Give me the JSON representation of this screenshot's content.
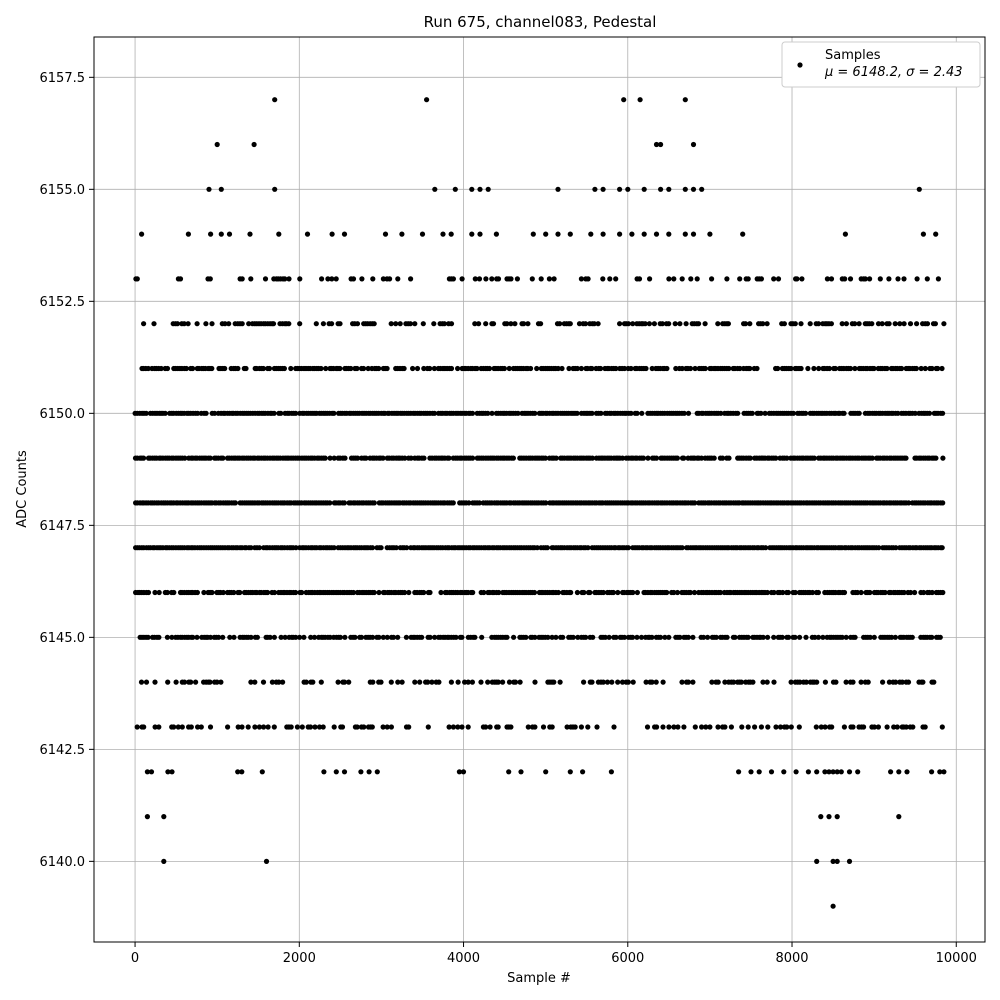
{
  "chart_data": {
    "type": "scatter",
    "title": "Run 675, channel083, Pedestal",
    "xlabel": "Sample #",
    "ylabel": "ADC Counts",
    "xlim": [
      -500,
      10350
    ],
    "ylim": [
      6138.2,
      6158.4
    ],
    "xticks": [
      0,
      2000,
      4000,
      6000,
      8000,
      10000
    ],
    "xtick_labels": [
      "0",
      "2000",
      "4000",
      "6000",
      "8000",
      "10000"
    ],
    "yticks": [
      6140.0,
      6142.5,
      6145.0,
      6147.5,
      6150.0,
      6152.5,
      6155.0,
      6157.5
    ],
    "ytick_labels": [
      "6140.0",
      "6142.5",
      "6145.0",
      "6147.5",
      "6150.0",
      "6152.5",
      "6155.0",
      "6157.5"
    ],
    "grid": true,
    "legend_position": "top-right",
    "marker_color": "#000000",
    "series": [
      {
        "name": "Samples",
        "stats_label": "μ = 6148.2, σ = 2.43",
        "bands": [
          {
            "y": 6150,
            "x_start": 0,
            "x_end": 9850,
            "density": 0.9
          },
          {
            "y": 6149,
            "x_start": 0,
            "x_end": 9850,
            "density": 0.85
          },
          {
            "y": 6148,
            "x_start": 0,
            "x_end": 9850,
            "density": 0.95
          },
          {
            "y": 6147,
            "x_start": 0,
            "x_end": 9850,
            "density": 0.95
          },
          {
            "y": 6146,
            "x_start": 0,
            "x_end": 9850,
            "density": 0.8
          },
          {
            "y": 6151,
            "x_start": 50,
            "x_end": 9850,
            "density": 0.7
          },
          {
            "y": 6145,
            "x_start": 0,
            "x_end": 9850,
            "density": 0.65
          },
          {
            "y": 6152,
            "x_start": 100,
            "x_end": 9850,
            "density": 0.45
          },
          {
            "y": 6144,
            "x_start": 0,
            "x_end": 9850,
            "density": 0.4
          },
          {
            "y": 6153,
            "x_start": 0,
            "x_end": 9800,
            "density": 0.25
          },
          {
            "y": 6143,
            "x_start": 0,
            "x_end": 9850,
            "density": 0.3
          }
        ],
        "points": [
          [
            80,
            6154
          ],
          [
            650,
            6154
          ],
          [
            920,
            6154
          ],
          [
            1050,
            6154
          ],
          [
            1150,
            6154
          ],
          [
            1400,
            6154
          ],
          [
            1750,
            6154
          ],
          [
            2100,
            6154
          ],
          [
            2400,
            6154
          ],
          [
            2550,
            6154
          ],
          [
            3050,
            6154
          ],
          [
            3250,
            6154
          ],
          [
            3500,
            6154
          ],
          [
            3750,
            6154
          ],
          [
            3850,
            6154
          ],
          [
            4100,
            6154
          ],
          [
            4200,
            6154
          ],
          [
            4400,
            6154
          ],
          [
            4850,
            6154
          ],
          [
            5000,
            6154
          ],
          [
            5150,
            6154
          ],
          [
            5300,
            6154
          ],
          [
            5550,
            6154
          ],
          [
            5700,
            6154
          ],
          [
            5900,
            6154
          ],
          [
            6050,
            6154
          ],
          [
            6200,
            6154
          ],
          [
            6350,
            6154
          ],
          [
            6500,
            6154
          ],
          [
            6700,
            6154
          ],
          [
            6800,
            6154
          ],
          [
            7000,
            6154
          ],
          [
            7400,
            6154
          ],
          [
            8650,
            6154
          ],
          [
            9600,
            6154
          ],
          [
            9750,
            6154
          ],
          [
            900,
            6155
          ],
          [
            1050,
            6155
          ],
          [
            1700,
            6155
          ],
          [
            3650,
            6155
          ],
          [
            3900,
            6155
          ],
          [
            4100,
            6155
          ],
          [
            4200,
            6155
          ],
          [
            4300,
            6155
          ],
          [
            5150,
            6155
          ],
          [
            5600,
            6155
          ],
          [
            5700,
            6155
          ],
          [
            5900,
            6155
          ],
          [
            6000,
            6155
          ],
          [
            6200,
            6155
          ],
          [
            6400,
            6155
          ],
          [
            6500,
            6155
          ],
          [
            6700,
            6155
          ],
          [
            6800,
            6155
          ],
          [
            6900,
            6155
          ],
          [
            9550,
            6155
          ],
          [
            1000,
            6156
          ],
          [
            1450,
            6156
          ],
          [
            6350,
            6156
          ],
          [
            6400,
            6156
          ],
          [
            6800,
            6156
          ],
          [
            1700,
            6157
          ],
          [
            3550,
            6157
          ],
          [
            5950,
            6157
          ],
          [
            6150,
            6157
          ],
          [
            6700,
            6157
          ],
          [
            150,
            6142
          ],
          [
            200,
            6142
          ],
          [
            400,
            6142
          ],
          [
            450,
            6142
          ],
          [
            1250,
            6142
          ],
          [
            1300,
            6142
          ],
          [
            1550,
            6142
          ],
          [
            2300,
            6142
          ],
          [
            2450,
            6142
          ],
          [
            2550,
            6142
          ],
          [
            2750,
            6142
          ],
          [
            2850,
            6142
          ],
          [
            2950,
            6142
          ],
          [
            3950,
            6142
          ],
          [
            4000,
            6142
          ],
          [
            4550,
            6142
          ],
          [
            4700,
            6142
          ],
          [
            5000,
            6142
          ],
          [
            5300,
            6142
          ],
          [
            5450,
            6142
          ],
          [
            5800,
            6142
          ],
          [
            7350,
            6142
          ],
          [
            7500,
            6142
          ],
          [
            7600,
            6142
          ],
          [
            7750,
            6142
          ],
          [
            7900,
            6142
          ],
          [
            8050,
            6142
          ],
          [
            8200,
            6142
          ],
          [
            8300,
            6142
          ],
          [
            8400,
            6142
          ],
          [
            8450,
            6142
          ],
          [
            8500,
            6142
          ],
          [
            8550,
            6142
          ],
          [
            8600,
            6142
          ],
          [
            8700,
            6142
          ],
          [
            8800,
            6142
          ],
          [
            9200,
            6142
          ],
          [
            9300,
            6142
          ],
          [
            9400,
            6142
          ],
          [
            9700,
            6142
          ],
          [
            9800,
            6142
          ],
          [
            9850,
            6142
          ],
          [
            150,
            6141
          ],
          [
            350,
            6141
          ],
          [
            8350,
            6141
          ],
          [
            8450,
            6141
          ],
          [
            8550,
            6141
          ],
          [
            9300,
            6141
          ],
          [
            350,
            6140
          ],
          [
            1600,
            6140
          ],
          [
            8300,
            6140
          ],
          [
            8500,
            6140
          ],
          [
            8550,
            6140
          ],
          [
            8700,
            6140
          ],
          [
            8500,
            6139
          ]
        ]
      }
    ]
  }
}
